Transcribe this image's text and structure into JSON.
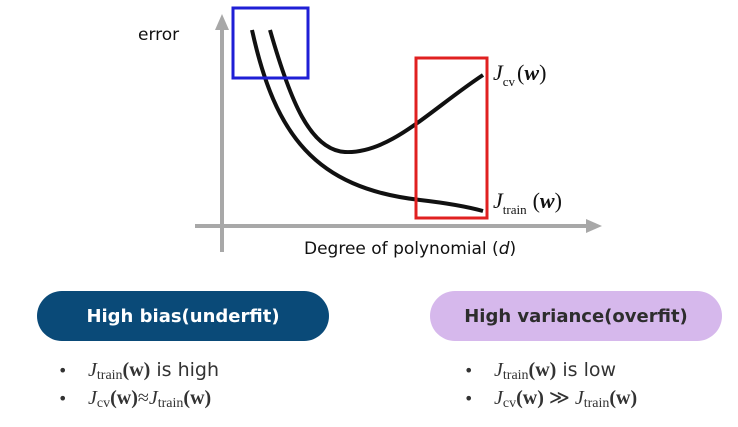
{
  "axes": {
    "y_label": "error",
    "x_label_prefix": "Degree of polynomial (",
    "x_label_var": "d",
    "x_label_suffix": ")"
  },
  "curves": {
    "cv": {
      "J": "J",
      "sub": "cv",
      "arg_open": "(",
      "w": "w",
      "arg_close": ")"
    },
    "train": {
      "J": "J",
      "sub": "train",
      "arg_open": "(",
      "w": "w",
      "arg_close": ")"
    }
  },
  "highlights": {
    "left_box_color": "#1f1fd6",
    "right_box_color": "#e02020",
    "axis_color": "#a8a8a8",
    "curve_color": "#111111"
  },
  "bias": {
    "title": "High bias(underfit)",
    "color": "#0a4a78",
    "bullet": "•",
    "item1": {
      "J": "J",
      "sub": "train",
      "w": "(w)",
      "text": " is high"
    },
    "item2": {
      "J1": "J",
      "sub1": "cv",
      "w1": "(w)",
      "op": "≈",
      "J2": "J",
      "sub2": "train",
      "w2": "(w)"
    }
  },
  "variance": {
    "title": "High variance(overfit)",
    "color": "#d6b8ec",
    "bullet": "•",
    "item1": {
      "J": "J",
      "sub": "train",
      "w": "(w)",
      "text": " is low"
    },
    "item2": {
      "J1": "J",
      "sub1": "cv",
      "w1": "(w)",
      "op": " ≫ ",
      "J2": "J",
      "sub2": "train",
      "w2": "(w)"
    }
  }
}
